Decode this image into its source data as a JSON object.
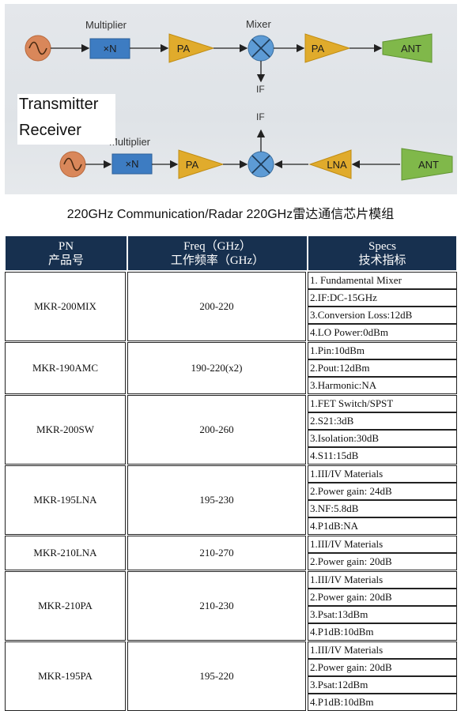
{
  "diagram": {
    "tx_labels": {
      "multiplier": "Multiplier",
      "mult_block": "×N",
      "pa1": "PA",
      "mixer": "Mixer",
      "pa2": "PA",
      "ant": "ANT",
      "if": "IF"
    },
    "rx_labels": {
      "multiplier": "Multiplier",
      "mult_block": "×N",
      "pa": "PA",
      "lna": "LNA",
      "ant": "ANT",
      "if": "IF"
    },
    "transmitter": "Transmitter",
    "receiver": "Receiver",
    "colors": {
      "background": "#e4e7eb",
      "oscillator": "#d9875a",
      "multiplier": "#3d7cc2",
      "amplifier": "#e0ab2c",
      "mixer": "#5d9bd5",
      "antenna": "#80b84a"
    }
  },
  "caption": "220GHz Communication/Radar 220GHz雷达通信芯片模组",
  "table": {
    "headers": {
      "pn_en": "PN",
      "pn_cn": "产品号",
      "freq_en": "Freq（GHz）",
      "freq_cn": "工作频率（GHz）",
      "spec_en": "Specs",
      "spec_cn": "技术指标"
    },
    "header_color": "#17304f",
    "rows": [
      {
        "pn": "MKR-200MIX",
        "freq": "200-220",
        "specs": [
          "1. Fundamental Mixer",
          "2.IF:DC-15GHz",
          "3.Conversion Loss:12dB",
          "4.LO Power:0dBm"
        ]
      },
      {
        "pn": "MKR-190AMC",
        "freq": "190-220(x2)",
        "specs": [
          "1.Pin:10dBm",
          "2.Pout:12dBm",
          "3.Harmonic:NA"
        ]
      },
      {
        "pn": "MKR-200SW",
        "freq": "200-260",
        "specs": [
          "1.FET Switch/SPST",
          "2.S21:3dB",
          "3.Isolation:30dB",
          "4.S11:15dB"
        ]
      },
      {
        "pn": "MKR-195LNA",
        "freq": "195-230",
        "specs": [
          "1.III/IV Materials",
          "2.Power gain: 24dB",
          "3.NF:5.8dB",
          "4.P1dB:NA"
        ]
      },
      {
        "pn": "MKR-210LNA",
        "freq": "210-270",
        "specs": [
          "1.III/IV Materials",
          "2.Power gain: 20dB"
        ]
      },
      {
        "pn": "MKR-210PA",
        "freq": "210-230",
        "specs": [
          "1.III/IV Materials",
          "2.Power gain: 20dB",
          "3.Psat:13dBm",
          "4.P1dB:10dBm"
        ]
      },
      {
        "pn": "MKR-195PA",
        "freq": "195-220",
        "specs": [
          "1.III/IV Materials",
          "2.Power gain: 20dB",
          "3.Psat:12dBm",
          "4.P1dB:10dBm"
        ]
      }
    ]
  }
}
